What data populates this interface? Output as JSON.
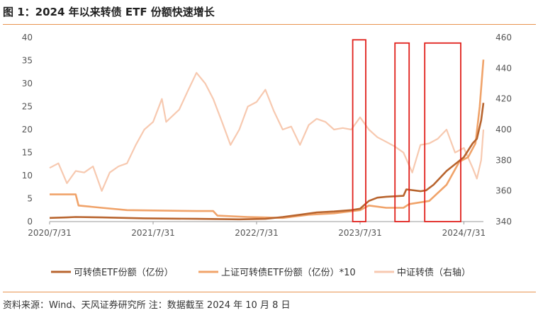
{
  "header": {
    "title": "图 1：2024 年以来转债 ETF 份额快速增长"
  },
  "footer": {
    "source": "资料来源：Wind、天风证券研究所 注：数据截至 2024 年 10 月 8 日"
  },
  "chart_data": {
    "type": "line",
    "title": "图 1：2024 年以来转债 ETF 份额快速增长",
    "x_ticks": [
      "2020/7/31",
      "2021/7/31",
      "2022/7/31",
      "2023/7/31",
      "2024/7/31"
    ],
    "x_range": [
      "2020/7/31",
      "2024/10/8"
    ],
    "y_left": {
      "lim": [
        0,
        40
      ],
      "ticks": [
        0,
        5,
        10,
        15,
        20,
        25,
        30,
        35,
        40
      ]
    },
    "y_right": {
      "lim": [
        340,
        460
      ],
      "ticks": [
        340,
        360,
        380,
        400,
        420,
        440,
        460
      ]
    },
    "grid": false,
    "legend_position": "bottom",
    "series": [
      {
        "name": "可转债ETF份额（亿份）",
        "axis": "left",
        "color": "#b8642e",
        "points": [
          [
            "2020/7/31",
            0.8
          ],
          [
            "2020/9/30",
            0.9
          ],
          [
            "2020/10/31",
            1.0
          ],
          [
            "2021/1/31",
            0.9
          ],
          [
            "2021/6/30",
            0.7
          ],
          [
            "2021/12/31",
            0.6
          ],
          [
            "2022/5/31",
            0.5
          ],
          [
            "2022/8/31",
            0.6
          ],
          [
            "2022/10/31",
            1.0
          ],
          [
            "2022/12/31",
            1.5
          ],
          [
            "2023/2/28",
            2.0
          ],
          [
            "2023/4/30",
            2.2
          ],
          [
            "2023/6/30",
            2.5
          ],
          [
            "2023/7/31",
            2.8
          ],
          [
            "2023/8/31",
            4.5
          ],
          [
            "2023/9/30",
            5.2
          ],
          [
            "2023/10/31",
            5.4
          ],
          [
            "2023/12/31",
            5.6
          ],
          [
            "2024/1/10",
            7.0
          ],
          [
            "2024/2/29",
            6.6
          ],
          [
            "2024/3/20",
            6.8
          ],
          [
            "2024/4/15",
            8.0
          ],
          [
            "2024/5/31",
            11.0
          ],
          [
            "2024/7/31",
            14.0
          ],
          [
            "2024/8/31",
            17.0
          ],
          [
            "2024/9/15",
            18.0
          ],
          [
            "2024/9/30",
            22.0
          ],
          [
            "2024/10/8",
            25.8
          ]
        ]
      },
      {
        "name": "上证可转债ETF份额（亿份）*10",
        "axis": "left",
        "color": "#f0a36a",
        "points": [
          [
            "2020/7/31",
            5.9
          ],
          [
            "2020/10/31",
            5.9
          ],
          [
            "2020/11/10",
            3.5
          ],
          [
            "2021/1/31",
            3.0
          ],
          [
            "2021/4/30",
            2.5
          ],
          [
            "2021/12/31",
            2.3
          ],
          [
            "2022/2/28",
            2.3
          ],
          [
            "2022/3/15",
            1.3
          ],
          [
            "2022/6/30",
            1.0
          ],
          [
            "2022/10/31",
            0.8
          ],
          [
            "2023/1/31",
            1.5
          ],
          [
            "2023/4/30",
            1.8
          ],
          [
            "2023/7/31",
            2.5
          ],
          [
            "2023/8/31",
            3.5
          ],
          [
            "2023/10/31",
            3.0
          ],
          [
            "2023/12/31",
            3.0
          ],
          [
            "2024/1/20",
            3.8
          ],
          [
            "2024/3/31",
            4.5
          ],
          [
            "2024/5/31",
            8.0
          ],
          [
            "2024/7/15",
            13.0
          ],
          [
            "2024/8/15",
            14.0
          ],
          [
            "2024/9/10",
            17.0
          ],
          [
            "2024/9/25",
            25.0
          ],
          [
            "2024/10/8",
            35.2
          ]
        ]
      },
      {
        "name": "中证转债（右轴）",
        "axis": "right",
        "color": "#f7c9b0",
        "points": [
          [
            "2020/7/31",
            375
          ],
          [
            "2020/8/31",
            378
          ],
          [
            "2020/9/30",
            365
          ],
          [
            "2020/10/31",
            373
          ],
          [
            "2020/11/30",
            372
          ],
          [
            "2020/12/31",
            376
          ],
          [
            "2021/1/31",
            360
          ],
          [
            "2021/2/28",
            372
          ],
          [
            "2021/3/31",
            376
          ],
          [
            "2021/4/30",
            378
          ],
          [
            "2021/5/31",
            390
          ],
          [
            "2021/6/30",
            400
          ],
          [
            "2021/7/31",
            405
          ],
          [
            "2021/8/31",
            420
          ],
          [
            "2021/9/15",
            405
          ],
          [
            "2021/10/31",
            413
          ],
          [
            "2021/11/30",
            425
          ],
          [
            "2021/12/31",
            437
          ],
          [
            "2022/1/31",
            430
          ],
          [
            "2022/2/28",
            420
          ],
          [
            "2022/3/31",
            405
          ],
          [
            "2022/4/30",
            390
          ],
          [
            "2022/5/31",
            400
          ],
          [
            "2022/6/30",
            415
          ],
          [
            "2022/7/31",
            418
          ],
          [
            "2022/8/31",
            426
          ],
          [
            "2022/9/30",
            412
          ],
          [
            "2022/10/31",
            400
          ],
          [
            "2022/11/30",
            402
          ],
          [
            "2022/12/31",
            390
          ],
          [
            "2023/1/31",
            403
          ],
          [
            "2023/2/28",
            407
          ],
          [
            "2023/3/31",
            405
          ],
          [
            "2023/4/30",
            400
          ],
          [
            "2023/5/31",
            401
          ],
          [
            "2023/6/30",
            400
          ],
          [
            "2023/7/31",
            408
          ],
          [
            "2023/8/31",
            400
          ],
          [
            "2023/9/30",
            395
          ],
          [
            "2023/10/31",
            392
          ],
          [
            "2023/11/30",
            389
          ],
          [
            "2023/12/31",
            385
          ],
          [
            "2024/1/31",
            372
          ],
          [
            "2024/2/29",
            390
          ],
          [
            "2024/3/31",
            391
          ],
          [
            "2024/4/30",
            394
          ],
          [
            "2024/5/31",
            400
          ],
          [
            "2024/6/30",
            385
          ],
          [
            "2024/7/31",
            388
          ],
          [
            "2024/8/31",
            375
          ],
          [
            "2024/9/15",
            368
          ],
          [
            "2024/9/30",
            380
          ],
          [
            "2024/10/8",
            400
          ]
        ]
      }
    ],
    "annotations": [
      {
        "type": "rectangle",
        "color": "#e0201b",
        "x_start": "2023/7/5",
        "x_end": "2023/8/20",
        "y_left_range": [
          0,
          39.5
        ]
      },
      {
        "type": "rectangle",
        "color": "#e0201b",
        "x_start": "2023/12/1",
        "x_end": "2024/1/20",
        "y_left_range": [
          0,
          38.8
        ]
      },
      {
        "type": "rectangle",
        "color": "#e0201b",
        "x_start": "2024/3/15",
        "x_end": "2024/7/20",
        "y_left_range": [
          0,
          38.8
        ]
      }
    ]
  }
}
